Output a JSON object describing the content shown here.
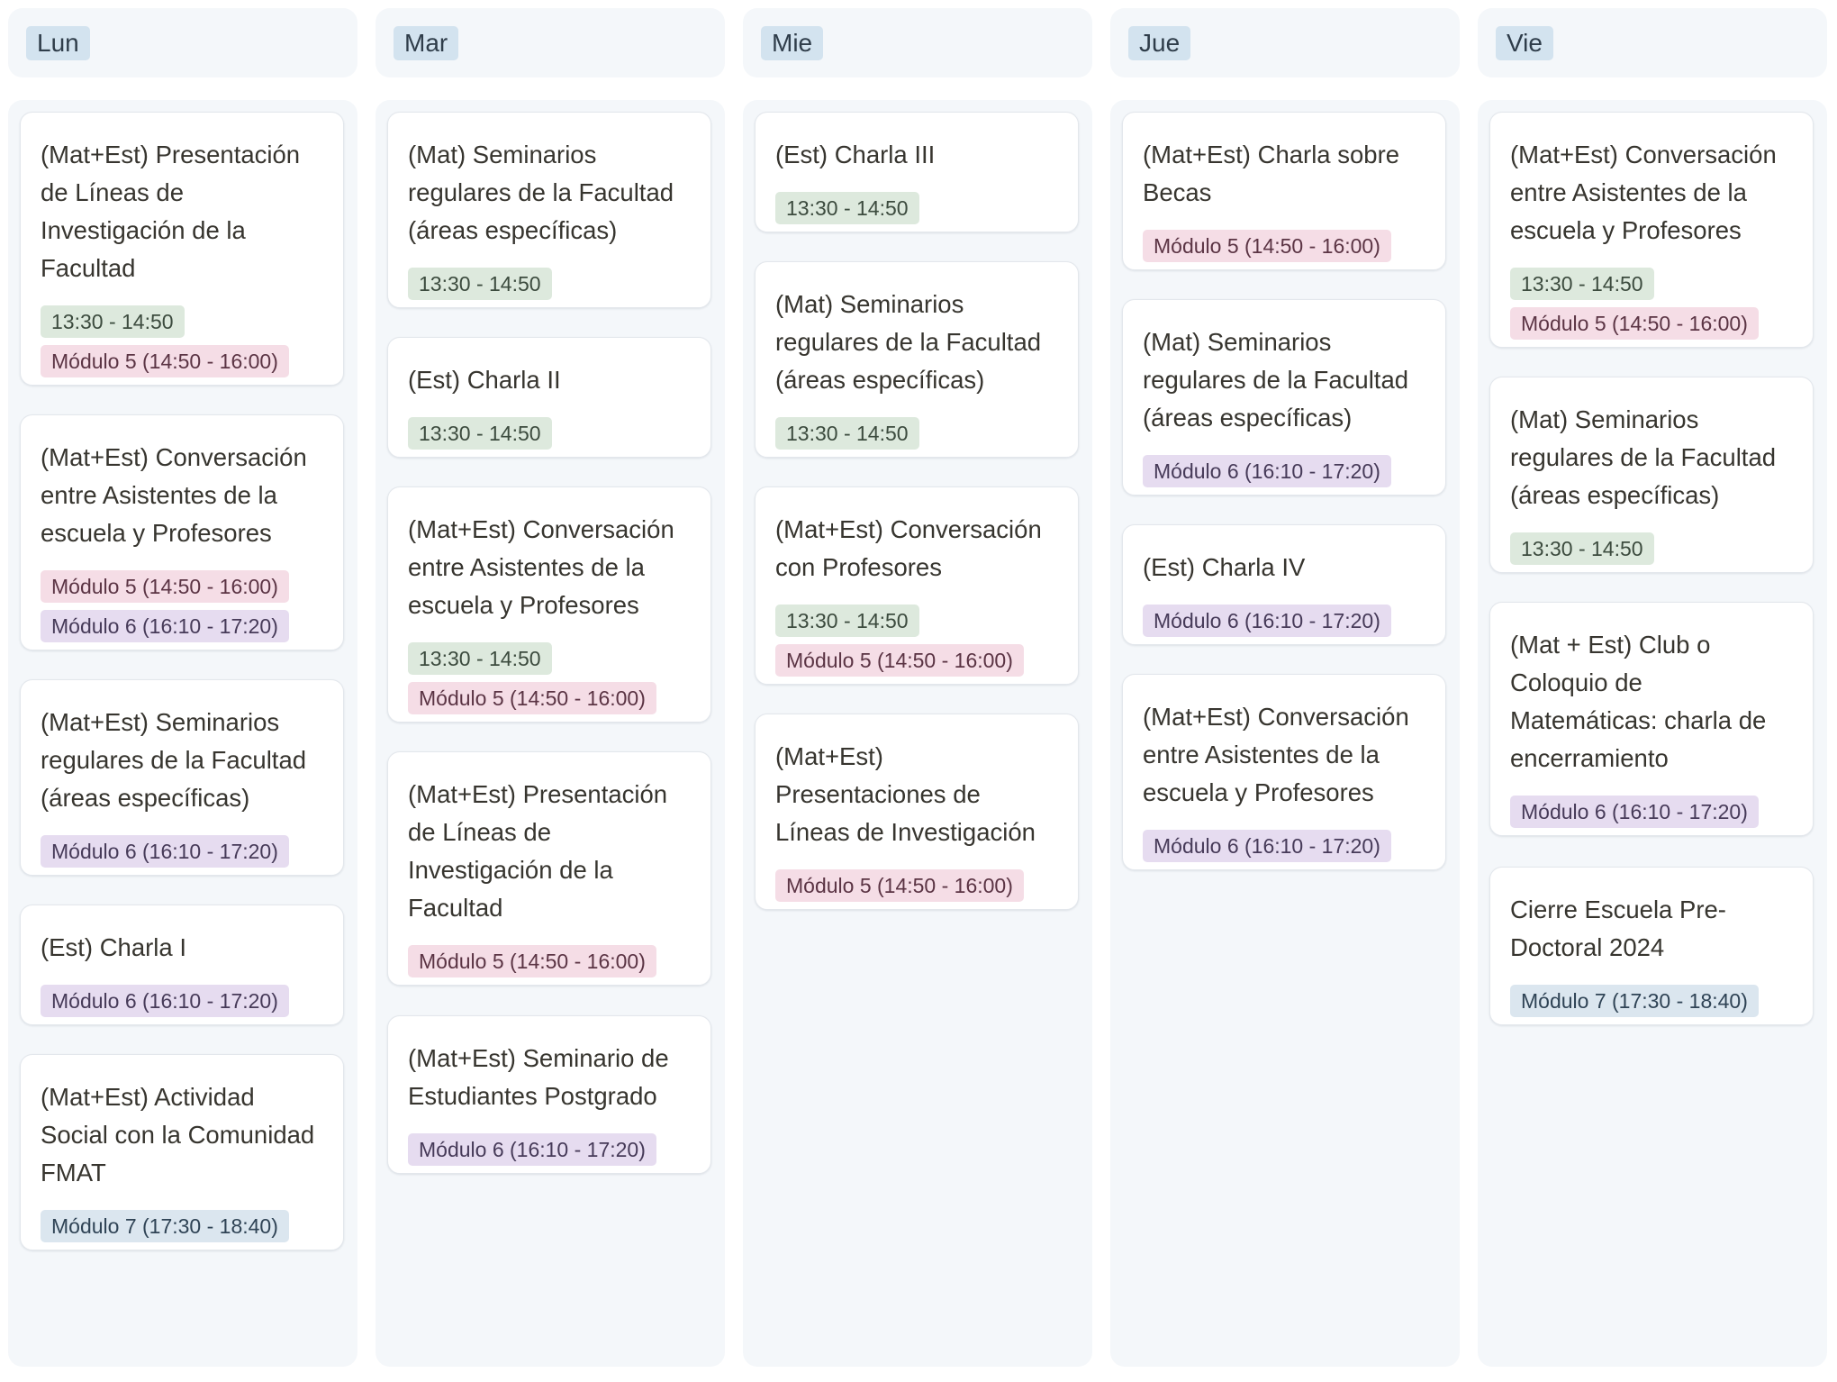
{
  "columns": [
    {
      "name": "Lun",
      "cards": [
        {
          "title": "(Mat+Est) Presentación de Líneas de Investigación de la Facultad",
          "tags": [
            {
              "label": "13:30 - 14:50",
              "color": "#dde9dd"
            },
            {
              "label": "Módulo 5 (14:50 - 16:00)",
              "color": "#f5dde6"
            }
          ]
        },
        {
          "title": "(Mat+Est) Conversación entre Asistentes de la escuela y Profesores",
          "tags": [
            {
              "label": "Módulo 5 (14:50 - 16:00)",
              "color": "#f5dde6"
            },
            {
              "label": "Módulo 6 (16:10 - 17:20)",
              "color": "#e6dcf0"
            }
          ]
        },
        {
          "title": "(Mat+Est) Seminarios regulares de la Facultad (áreas específicas)",
          "tags": [
            {
              "label": "Módulo 6 (16:10 - 17:20)",
              "color": "#e6dcf0"
            }
          ]
        },
        {
          "title": "(Est) Charla I",
          "tags": [
            {
              "label": "Módulo 6 (16:10 - 17:20)",
              "color": "#e6dcf0"
            }
          ]
        },
        {
          "title": "(Mat+Est) Actividad Social con la Comunidad FMAT",
          "tags": [
            {
              "label": "Módulo 7 (17:30 - 18:40)",
              "color": "#dbe6ef"
            }
          ]
        }
      ]
    },
    {
      "name": "Mar",
      "cards": [
        {
          "title": "(Mat) Seminarios regulares de la Facultad (áreas específicas)",
          "tags": [
            {
              "label": "13:30 - 14:50",
              "color": "#dde9dd"
            }
          ]
        },
        {
          "title": "(Est) Charla II",
          "tags": [
            {
              "label": "13:30 - 14:50",
              "color": "#dde9dd"
            }
          ]
        },
        {
          "title": "(Mat+Est) Conversación entre Asistentes de la escuela y Profesores",
          "tags": [
            {
              "label": "13:30 - 14:50",
              "color": "#dde9dd"
            },
            {
              "label": "Módulo 5 (14:50 - 16:00)",
              "color": "#f5dde6"
            }
          ]
        },
        {
          "title": "(Mat+Est) Presentación de Líneas de Investigación de la Facultad",
          "tags": [
            {
              "label": "Módulo 5 (14:50 - 16:00)",
              "color": "#f5dde6"
            }
          ]
        },
        {
          "title": "(Mat+Est) Seminario de Estudiantes Postgrado",
          "tags": [
            {
              "label": "Módulo 6 (16:10 - 17:20)",
              "color": "#e6dcf0"
            }
          ]
        }
      ]
    },
    {
      "name": "Mie",
      "cards": [
        {
          "title": "(Est) Charla III",
          "tags": [
            {
              "label": "13:30 - 14:50",
              "color": "#dde9dd"
            }
          ]
        },
        {
          "title": "(Mat) Seminarios regulares de la Facultad (áreas específicas)",
          "tags": [
            {
              "label": "13:30 - 14:50",
              "color": "#dde9dd"
            }
          ]
        },
        {
          "title": "(Mat+Est) Conversación con Profesores",
          "tags": [
            {
              "label": "13:30 - 14:50",
              "color": "#dde9dd"
            },
            {
              "label": "Módulo 5 (14:50 - 16:00)",
              "color": "#f5dde6"
            }
          ]
        },
        {
          "title": "(Mat+Est) Presentaciones de Líneas de Investigación",
          "tags": [
            {
              "label": "Módulo 5 (14:50 - 16:00)",
              "color": "#f5dde6"
            }
          ]
        }
      ]
    },
    {
      "name": "Jue",
      "cards": [
        {
          "title": "(Mat+Est) Charla sobre Becas",
          "tags": [
            {
              "label": "Módulo 5 (14:50 - 16:00)",
              "color": "#f5dde6"
            }
          ]
        },
        {
          "title": "(Mat) Seminarios regulares de la Facultad (áreas específicas)",
          "tags": [
            {
              "label": "Módulo 6 (16:10 - 17:20)",
              "color": "#e6dcf0"
            }
          ]
        },
        {
          "title": "(Est) Charla IV",
          "tags": [
            {
              "label": "Módulo 6 (16:10 - 17:20)",
              "color": "#e6dcf0"
            }
          ]
        },
        {
          "title": "(Mat+Est) Conversación entre Asistentes de la escuela y Profesores",
          "tags": [
            {
              "label": "Módulo 6 (16:10 - 17:20)",
              "color": "#e6dcf0"
            }
          ]
        }
      ]
    },
    {
      "name": "Vie",
      "cards": [
        {
          "title": "(Mat+Est) Conversación entre Asistentes de la escuela y Profesores",
          "tags": [
            {
              "label": "13:30 - 14:50",
              "color": "#dde9dd"
            },
            {
              "label": "Módulo 5 (14:50 - 16:00)",
              "color": "#f5dde6"
            }
          ]
        },
        {
          "title": "(Mat) Seminarios regulares de la Facultad (áreas específicas)",
          "tags": [
            {
              "label": "13:30 - 14:50",
              "color": "#dde9dd"
            }
          ]
        },
        {
          "title": "(Mat + Est) Club o Coloquio de Matemáticas: charla de encerramiento",
          "tags": [
            {
              "label": "Módulo 6 (16:10 - 17:20)",
              "color": "#e6dcf0"
            }
          ]
        },
        {
          "title": "Cierre Escuela Pre-Doctoral 2024",
          "tags": [
            {
              "label": "Módulo 7 (17:30 - 18:40)",
              "color": "#dbe6ef"
            }
          ]
        }
      ]
    }
  ]
}
